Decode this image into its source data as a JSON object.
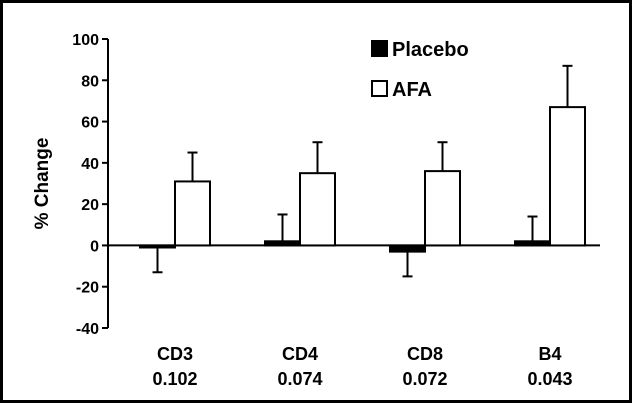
{
  "chart_data": {
    "type": "bar",
    "title": "",
    "xlabel": "",
    "ylabel": "% Change",
    "ylim": [
      -40,
      100
    ],
    "yticks": [
      -40,
      -20,
      0,
      20,
      40,
      60,
      80,
      100
    ],
    "categories": [
      "CD3",
      "CD4",
      "CD8",
      "B4"
    ],
    "category_sublabels": [
      "0.102",
      "0.074",
      "0.072",
      "0.043"
    ],
    "series": [
      {
        "name": "Placebo",
        "values": [
          -1,
          2,
          -3,
          2
        ],
        "error": [
          12,
          13,
          12,
          12
        ],
        "fill": "#000000"
      },
      {
        "name": "AFA",
        "values": [
          31,
          35,
          36,
          67
        ],
        "error": [
          14,
          15,
          14,
          20
        ],
        "fill": "#ffffff"
      }
    ],
    "legend": "top-right",
    "grid": false
  }
}
